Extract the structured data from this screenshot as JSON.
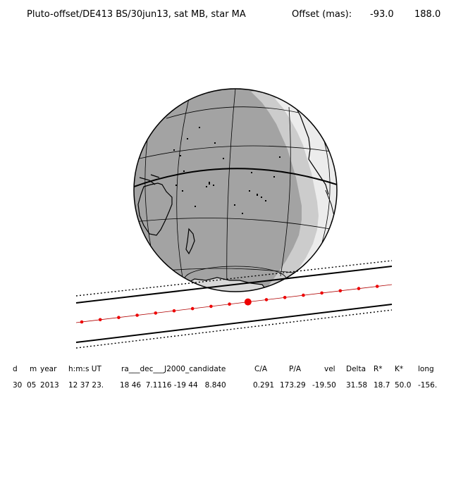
{
  "title": {
    "label": "Pluto-offset/DE413 BS/30jun13, sat MB, star MA",
    "offset_label": "Offset (mas):",
    "offset_x": "-93.0",
    "offset_y": "188.0"
  },
  "table": {
    "headers": [
      "d",
      "m",
      "year",
      "h:m:s UT",
      "ra___dec___J2000_candidate",
      "C/A",
      "P/A",
      "vel",
      "Delta",
      "R*",
      "K*",
      "long"
    ],
    "values": [
      "30",
      "05",
      "2013",
      "12 37 23.",
      "18 46  7.1116 -19 44   8.840",
      "0.291",
      "173.29",
      "-19.50",
      "31.58",
      "18.7",
      "50.0",
      "-156."
    ]
  },
  "colors": {
    "night": "#a3a3a3",
    "twilight": "#cccccc",
    "day": "#ececec",
    "track_line": "#b00000",
    "track_points": "#ee0000"
  }
}
